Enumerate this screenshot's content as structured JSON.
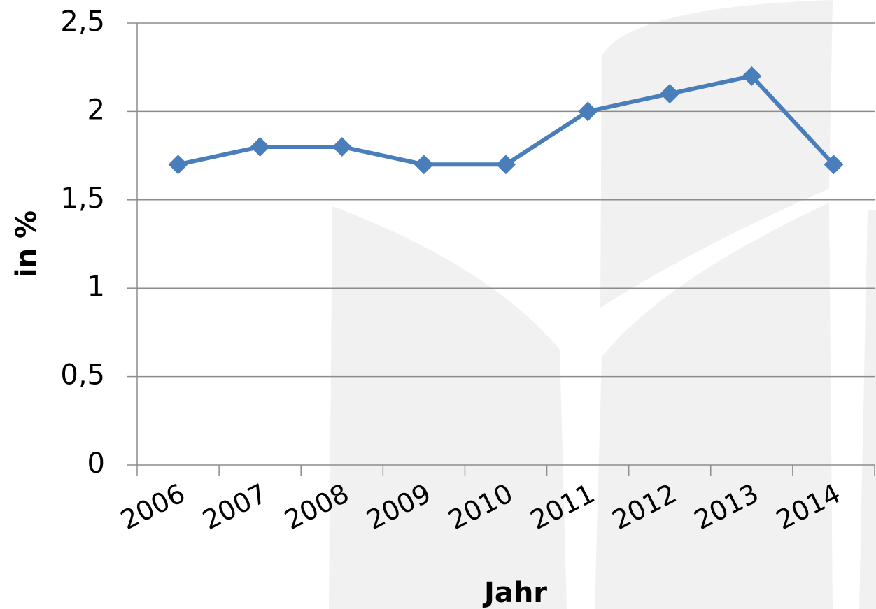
{
  "chart_data": {
    "type": "line",
    "xlabel": "Jahr",
    "ylabel": "in %",
    "categories": [
      "2006",
      "2007",
      "2008",
      "2009",
      "2010",
      "2011",
      "2012",
      "2013",
      "2014"
    ],
    "series": [
      {
        "color": "#4a7ebb",
        "values": [
          1.7,
          1.8,
          1.8,
          1.7,
          1.7,
          2.0,
          2.1,
          2.2,
          1.7
        ]
      }
    ],
    "ylim": [
      0,
      2.5
    ],
    "yticks": [
      0,
      {
        "value": 0.5,
        "label": "0,5"
      },
      1,
      {
        "value": 1.5,
        "label": "1,5"
      },
      2,
      {
        "value": 2.5,
        "label": "2,5"
      }
    ],
    "grid": true
  }
}
